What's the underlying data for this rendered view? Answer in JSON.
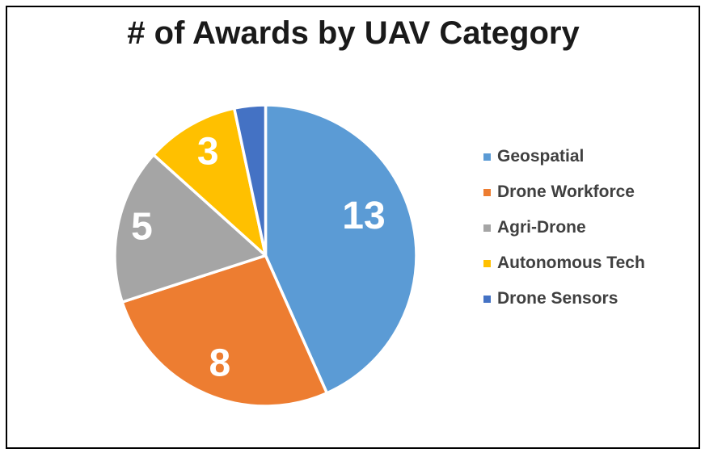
{
  "chart_data": {
    "type": "pie",
    "title": "# of Awards by UAV Category",
    "categories": [
      "Geospatial",
      "Drone Workforce",
      "Agri-Drone",
      "Autonomous Tech",
      "Drone Sensors"
    ],
    "values": [
      13,
      8,
      5,
      3,
      1
    ],
    "colors": [
      "#5B9BD5",
      "#ED7D31",
      "#A5A5A5",
      "#FFC000",
      "#4472C4"
    ],
    "data_labels": [
      "13",
      "8",
      "5",
      "3",
      ""
    ],
    "data_label_color": "#ffffff",
    "slice_border_color": "#ffffff",
    "legend_position": "right",
    "legend_text_color": "#404040",
    "title_color": "#1a1a1a",
    "start_angle_deg": 0,
    "direction": "clockwise"
  }
}
